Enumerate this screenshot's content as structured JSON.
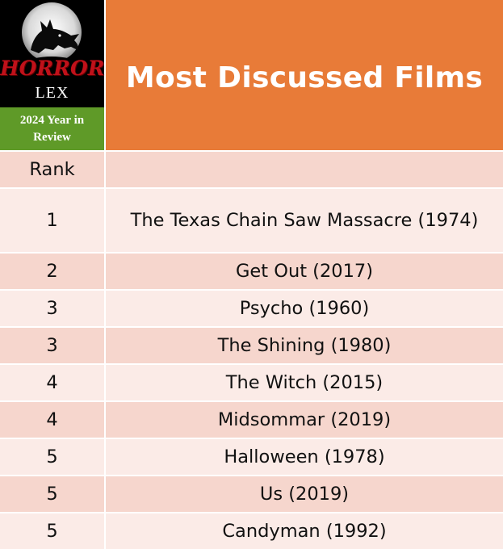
{
  "logo": {
    "title": "HORROR",
    "subtitle": "LEX",
    "band": "2024 Year in Review"
  },
  "header": {
    "title": "Most Discussed Films"
  },
  "table": {
    "rank_header": "Rank",
    "film_header": "",
    "rows": [
      {
        "rank": "1",
        "film": "The Texas Chain Saw Massacre (1974)"
      },
      {
        "rank": "2",
        "film": "Get Out (2017)"
      },
      {
        "rank": "3",
        "film": "Psycho (1960)"
      },
      {
        "rank": "3",
        "film": "The Shining (1980)"
      },
      {
        "rank": "4",
        "film": "The Witch (2015)"
      },
      {
        "rank": "4",
        "film": "Midsommar (2019)"
      },
      {
        "rank": "5",
        "film": "Halloween (1978)"
      },
      {
        "rank": "5",
        "film": "Us (2019)"
      },
      {
        "rank": "5",
        "film": "Candyman (1992)"
      }
    ]
  },
  "colors": {
    "header_orange": "#e87b38",
    "band_green": "#5f9a28",
    "row_dark": "#f6d6cd",
    "row_light": "#fbebe7",
    "logo_red": "#c0111a"
  },
  "icons": [
    "moon-wolf-logo-icon"
  ]
}
